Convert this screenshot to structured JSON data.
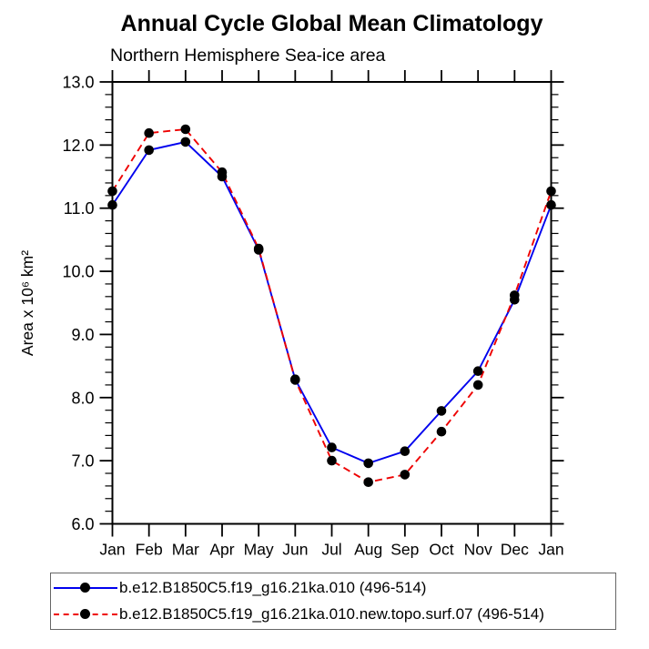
{
  "chart_data": {
    "type": "line",
    "title": "Annual Cycle Global Mean Climatology",
    "subtitle": "Northern Hemisphere Sea-ice area",
    "ylabel": "Area x 10⁶ km²",
    "xlabel": "",
    "x_categories": [
      "Jan",
      "Feb",
      "Mar",
      "Apr",
      "May",
      "Jun",
      "Jul",
      "Aug",
      "Sep",
      "Oct",
      "Nov",
      "Dec",
      "Jan"
    ],
    "ylim": [
      6.0,
      13.0
    ],
    "ytick_major_interval": 1.0,
    "ytick_minor_interval": 0.2,
    "ytick_label_format": "one-decimal",
    "grid": false,
    "legend_position": "below-plot-left",
    "axis_color": "#000000",
    "marker_color": "#000000",
    "series": [
      {
        "name": "b.e12.B1850C5.f19_g16.21ka.010 (496-514)",
        "color": "#0000ee",
        "line_style": "solid",
        "marker": "filled-circle",
        "values": [
          11.05,
          11.92,
          12.05,
          11.5,
          10.34,
          8.29,
          7.21,
          6.96,
          7.15,
          7.79,
          8.42,
          9.55,
          11.05
        ]
      },
      {
        "name": "b.e12.B1850C5.f19_g16.21ka.010.new.topo.surf.07 (496-514)",
        "color": "#ee0000",
        "line_style": "dashed",
        "marker": "filled-circle",
        "values": [
          11.27,
          12.19,
          12.25,
          11.57,
          10.36,
          8.28,
          7.0,
          6.66,
          6.78,
          7.46,
          8.2,
          9.62,
          11.27
        ]
      }
    ]
  }
}
